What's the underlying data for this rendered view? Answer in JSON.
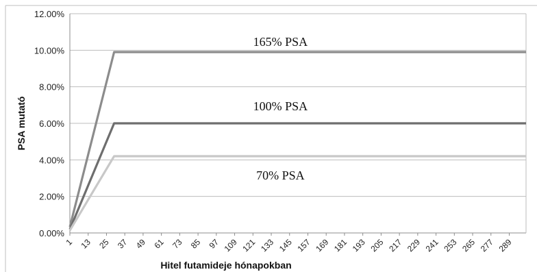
{
  "chart_data": {
    "type": "line",
    "title": "",
    "xlabel": "Hitel futamideje hónapokban",
    "ylabel": "PSA mutató",
    "x_ticks": [
      "1",
      "13",
      "25",
      "37",
      "49",
      "61",
      "73",
      "85",
      "97",
      "109",
      "121",
      "133",
      "145",
      "157",
      "169",
      "181",
      "193",
      "205",
      "217",
      "229",
      "241",
      "253",
      "265",
      "277",
      "289"
    ],
    "xlim": [
      1,
      300
    ],
    "ylim": [
      0,
      0.12
    ],
    "y_ticks": [
      "0.00%",
      "2.00%",
      "4.00%",
      "6.00%",
      "8.00%",
      "10.00%",
      "12.00%"
    ],
    "grid": true,
    "series": [
      {
        "name": "165% PSA",
        "color": "#8c8c8c",
        "points": [
          [
            1,
            0.0033
          ],
          [
            30,
            0.099
          ],
          [
            300,
            0.099
          ]
        ]
      },
      {
        "name": "100% PSA",
        "color": "#6e6e6e",
        "points": [
          [
            1,
            0.002
          ],
          [
            30,
            0.06
          ],
          [
            300,
            0.06
          ]
        ]
      },
      {
        "name": "70% PSA",
        "color": "#c8c8c8",
        "points": [
          [
            1,
            0.0014
          ],
          [
            30,
            0.042
          ],
          [
            300,
            0.042
          ]
        ]
      }
    ],
    "annotations": [
      {
        "text": "165% PSA",
        "series": "165% PSA"
      },
      {
        "text": "100% PSA",
        "series": "100% PSA"
      },
      {
        "text": "70% PSA",
        "series": "70% PSA"
      }
    ]
  }
}
